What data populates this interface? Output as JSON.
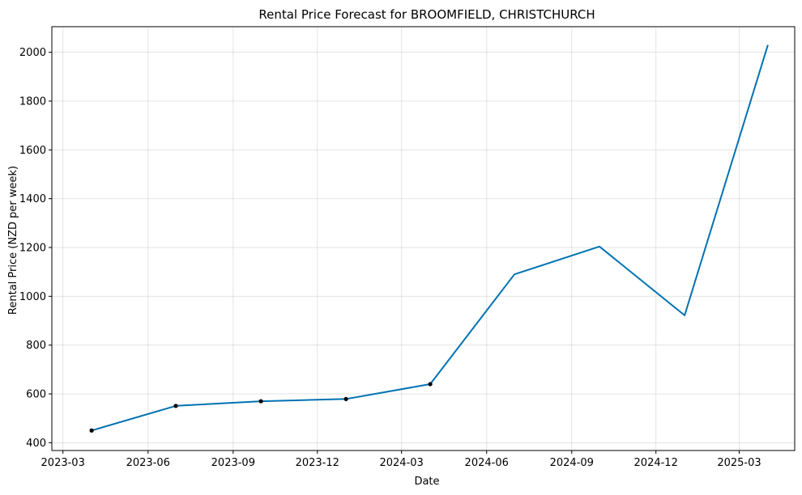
{
  "chart_data": {
    "type": "line",
    "title": "Rental Price Forecast for BROOMFIELD, CHRISTCHURCH",
    "xlabel": "Date",
    "ylabel": "Rental Price (NZD per week)",
    "x_ticks": [
      "2023-03",
      "2023-06",
      "2023-09",
      "2023-12",
      "2024-03",
      "2024-06",
      "2024-09",
      "2024-12",
      "2025-03"
    ],
    "y_ticks": [
      400,
      600,
      800,
      1000,
      1200,
      1400,
      1600,
      1800,
      2000
    ],
    "xlim": [
      "2023-02-17",
      "2025-04-30"
    ],
    "ylim": [
      368,
      2105
    ],
    "grid": true,
    "series": [
      {
        "kind": "forecast-line",
        "color": "#0072B2",
        "points": [
          {
            "x": "2023-04-01",
            "y": 450
          },
          {
            "x": "2023-07-01",
            "y": 551
          },
          {
            "x": "2023-10-01",
            "y": 570
          },
          {
            "x": "2024-01-01",
            "y": 579
          },
          {
            "x": "2024-04-01",
            "y": 640
          },
          {
            "x": "2024-07-01",
            "y": 1090
          },
          {
            "x": "2024-10-01",
            "y": 1204
          },
          {
            "x": "2025-01-01",
            "y": 922
          },
          {
            "x": "2025-04-01",
            "y": 2030
          }
        ]
      },
      {
        "kind": "observed-points",
        "color": "#000000",
        "points": [
          {
            "x": "2023-04-01",
            "y": 450
          },
          {
            "x": "2023-07-01",
            "y": 551
          },
          {
            "x": "2023-10-01",
            "y": 570
          },
          {
            "x": "2024-01-01",
            "y": 579
          },
          {
            "x": "2024-04-01",
            "y": 640
          }
        ]
      }
    ]
  }
}
